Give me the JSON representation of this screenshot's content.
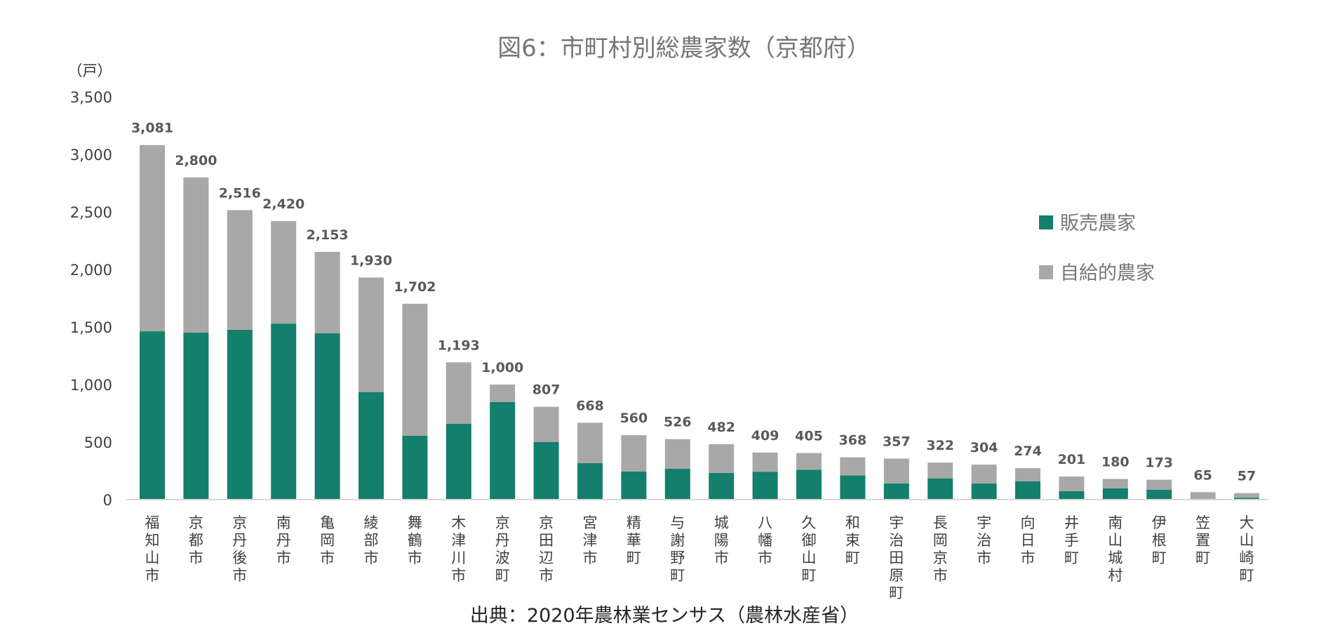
{
  "chart_data": {
    "type": "bar",
    "stacked": true,
    "title": "図6：市町村別総農家数（京都府）",
    "ylabel": "（戸）",
    "xlabel": "",
    "ylim": [
      0,
      3500
    ],
    "yticks": [
      0,
      500,
      1000,
      1500,
      2000,
      2500,
      3000,
      3500
    ],
    "ytick_labels": [
      "0",
      "500",
      "1,000",
      "1,500",
      "2,000",
      "2,500",
      "3,000",
      "3,500"
    ],
    "grid": false,
    "legend_position": "right",
    "categories": [
      "福知山市",
      "京都市",
      "京丹後市",
      "南丹市",
      "亀岡市",
      "綾部市",
      "舞鶴市",
      "木津川市",
      "京丹波町",
      "京田辺市",
      "宮津市",
      "精華町",
      "与謝野町",
      "城陽市",
      "八幡市",
      "久御山町",
      "和束町",
      "宇治田原町",
      "長岡京市",
      "宇治市",
      "向日市",
      "井手町",
      "南山城村",
      "伊根町",
      "笠置町",
      "大山崎町"
    ],
    "series": [
      {
        "name": "販売農家",
        "color": "#137F6C",
        "values": [
          1463,
          1451,
          1476,
          1530,
          1445,
          933,
          555,
          659,
          848,
          500,
          317,
          244,
          268,
          232,
          243,
          259,
          210,
          141,
          185,
          141,
          160,
          74,
          99,
          87,
          6,
          17
        ]
      },
      {
        "name": "自給的農家",
        "color": "#A8A8A8",
        "values": [
          1618,
          1349,
          1040,
          890,
          708,
          997,
          1147,
          534,
          152,
          307,
          351,
          316,
          258,
          250,
          166,
          146,
          158,
          216,
          137,
          163,
          114,
          127,
          81,
          86,
          59,
          40
        ]
      }
    ],
    "totals": [
      3081,
      2800,
      2516,
      2420,
      2153,
      1930,
      1702,
      1193,
      1000,
      807,
      668,
      560,
      526,
      482,
      409,
      405,
      368,
      357,
      322,
      304,
      274,
      201,
      180,
      173,
      65,
      57
    ],
    "total_labels": [
      "3,081",
      "2,800",
      "2,516",
      "2,420",
      "2,153",
      "1,930",
      "1,702",
      "1,193",
      "1,000",
      "807",
      "668",
      "560",
      "526",
      "482",
      "409",
      "405",
      "368",
      "357",
      "322",
      "304",
      "274",
      "201",
      "180",
      "173",
      "65",
      "57"
    ],
    "source": "出典：2020年農林業センサス（農林水産省）"
  },
  "colors": {
    "axis": "#D9D9D9"
  }
}
